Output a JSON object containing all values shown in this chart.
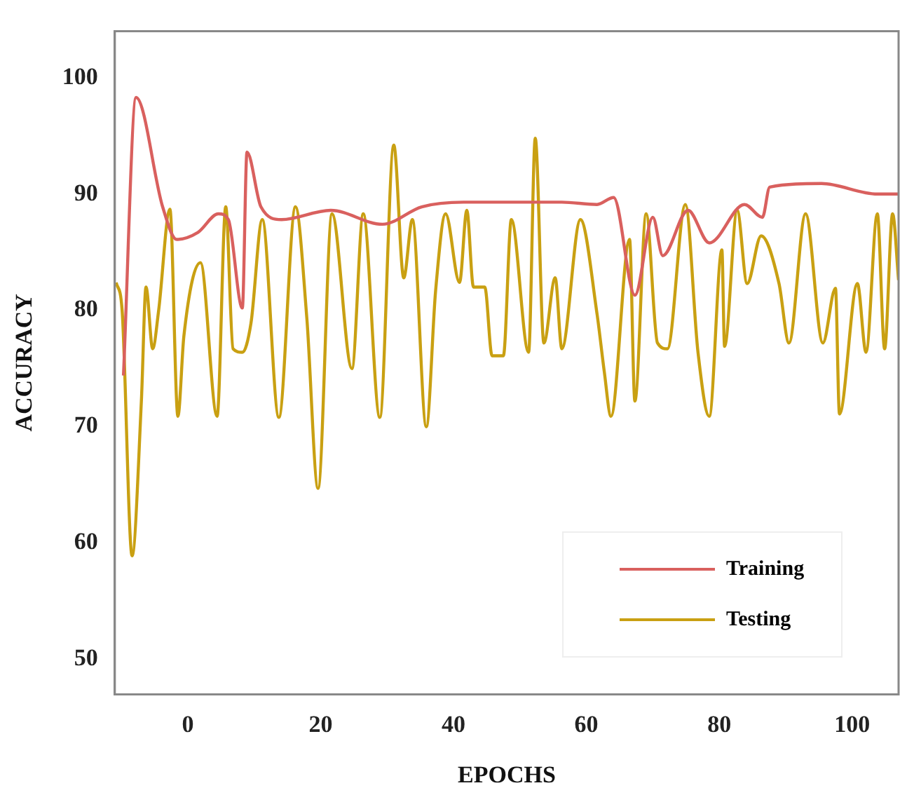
{
  "chart_data": {
    "type": "line",
    "xlabel": "EPOCHS",
    "ylabel": "ACCURACY",
    "xlim": [
      -11,
      107
    ],
    "xticks": [
      0,
      20,
      40,
      60,
      80,
      100
    ],
    "ylim": [
      47,
      104
    ],
    "yticks": [
      50,
      60,
      70,
      80,
      90,
      100
    ],
    "grid": false,
    "legend": "bottom right",
    "marker": "none",
    "line_style": "solid",
    "series": [
      {
        "name": "Training",
        "color": "#d9605e",
        "x": [
          -9.7,
          -7.8,
          -3.8,
          -1.7,
          1.5,
          4.6,
          6.1,
          8.2,
          8.9,
          11,
          14.1,
          21.5,
          29.3,
          35.2,
          41.5,
          56.3,
          61.6,
          64.1,
          67.3,
          70,
          71.5,
          75.3,
          78.5,
          83.8,
          86.5,
          87.6,
          95.4,
          103.8,
          107
        ],
        "values": [
          74.4,
          98.3,
          88.9,
          86.1,
          86.7,
          88.3,
          87.8,
          80.2,
          93.6,
          88.9,
          87.8,
          88.6,
          87.4,
          88.9,
          89.3,
          89.3,
          89.1,
          89.7,
          81.3,
          88,
          84.7,
          88.6,
          85.8,
          89.1,
          88,
          90.6,
          90.9,
          90,
          90
        ]
      },
      {
        "name": "Testing",
        "color": "#c9a012",
        "x": [
          -10.8,
          -9.9,
          -8.4,
          -7,
          -6.3,
          -5.3,
          -4.4,
          -2.7,
          -1.5,
          -0.6,
          1.9,
          4.4,
          5.7,
          6.8,
          8.2,
          9.5,
          11.2,
          13.7,
          16.2,
          17.9,
          19.6,
          21.7,
          24.7,
          26.4,
          28.9,
          31,
          32.5,
          33.8,
          35.9,
          37.3,
          38.8,
          40.9,
          42,
          43,
          44.7,
          45.8,
          47.5,
          48.7,
          51.3,
          52.3,
          53.6,
          55.3,
          56.3,
          59.1,
          61.6,
          62.7,
          63.7,
          66.5,
          67.3,
          69,
          70.7,
          72.2,
          74.9,
          76.8,
          78.5,
          80.4,
          80.8,
          82.7,
          84.2,
          86.3,
          89,
          90.5,
          93,
          95.6,
          97.5,
          98.1,
          100.8,
          102.1,
          103.8,
          104.9,
          106.1,
          107
        ],
        "values": [
          82.4,
          80,
          58.9,
          72.2,
          82,
          76.7,
          80,
          88.7,
          70.9,
          77.8,
          84.1,
          70.9,
          88.9,
          76.7,
          76.4,
          78.9,
          87.8,
          70.8,
          88.9,
          79.4,
          64.7,
          88.3,
          75,
          88.3,
          70.8,
          94.2,
          82.8,
          87.8,
          70,
          81.7,
          88.3,
          82.4,
          88.6,
          82,
          82,
          76.1,
          76.1,
          87.8,
          76.4,
          94.8,
          77.2,
          82.8,
          76.7,
          87.8,
          79.7,
          74.7,
          70.9,
          86.1,
          72.2,
          88.3,
          77.2,
          76.7,
          89.1,
          76.4,
          70.9,
          85.2,
          76.9,
          88.6,
          82.3,
          86.4,
          82.3,
          77.2,
          88.3,
          77.2,
          81.9,
          71.1,
          82.3,
          76.4,
          88.3,
          76.7,
          88.3,
          82.6
        ]
      }
    ]
  }
}
